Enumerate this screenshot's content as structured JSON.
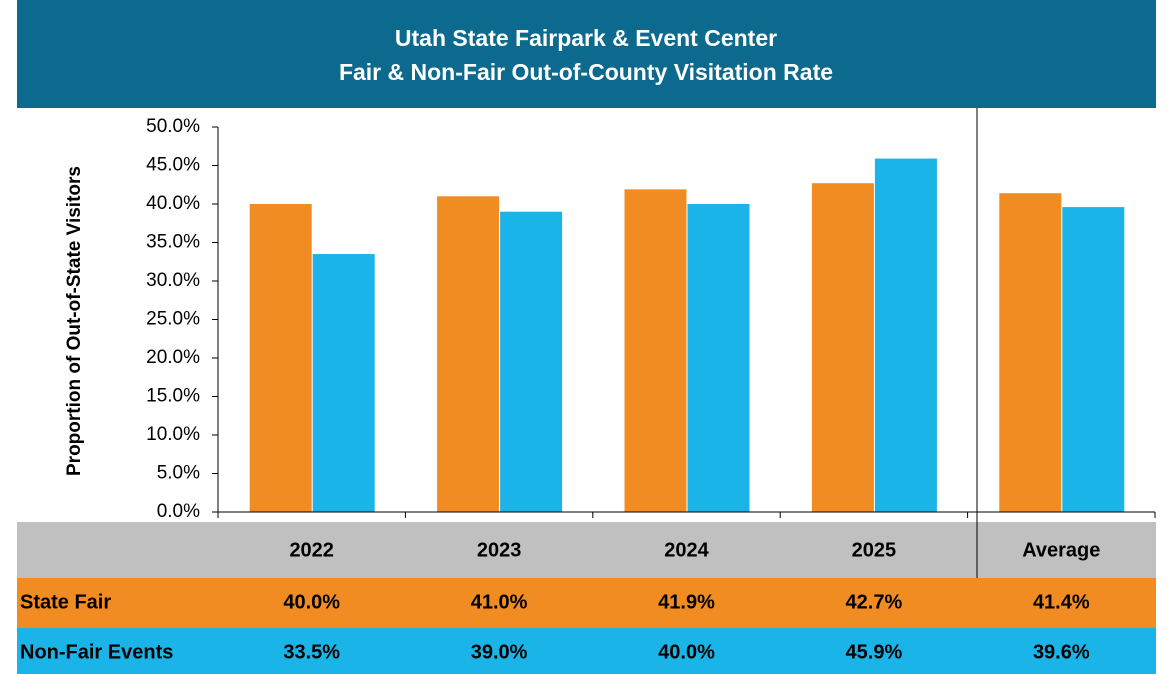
{
  "chart_data": {
    "type": "bar",
    "title": [
      "Utah State Fairpark & Event Center",
      "Fair & Non-Fair Out-of-County Visitation Rate"
    ],
    "y_label": "Proportion of Out-of-State Visitors",
    "categories": [
      "2022",
      "2023",
      "2024",
      "2025",
      "Average"
    ],
    "series": [
      {
        "name": "State Fair",
        "color": "#f08c21",
        "values": [
          40.0,
          41.0,
          41.9,
          42.7,
          41.4
        ],
        "value_labels": [
          "40.0%",
          "41.0%",
          "41.9%",
          "42.7%",
          "41.4%"
        ]
      },
      {
        "name": "Non-Fair Events",
        "color": "#1ab4e8",
        "values": [
          33.5,
          39.0,
          40.0,
          45.9,
          39.6
        ],
        "value_labels": [
          "33.5%",
          "39.0%",
          "40.0%",
          "45.9%",
          "39.6%"
        ]
      }
    ],
    "ylim": [
      0,
      50
    ],
    "yticks": [
      {
        "value": 0,
        "label": "0.0%"
      },
      {
        "value": 5,
        "label": "5.0%"
      },
      {
        "value": 10,
        "label": "10.0%"
      },
      {
        "value": 15,
        "label": "15.0%"
      },
      {
        "value": 20,
        "label": "20.0%"
      },
      {
        "value": 25,
        "label": "25.0%"
      },
      {
        "value": 30,
        "label": "30.0%"
      },
      {
        "value": 35,
        "label": "35.0%"
      },
      {
        "value": 40,
        "label": "40.0%"
      },
      {
        "value": 45,
        "label": "45.0%"
      },
      {
        "value": 50,
        "label": "50.0%"
      }
    ],
    "grid": false
  }
}
